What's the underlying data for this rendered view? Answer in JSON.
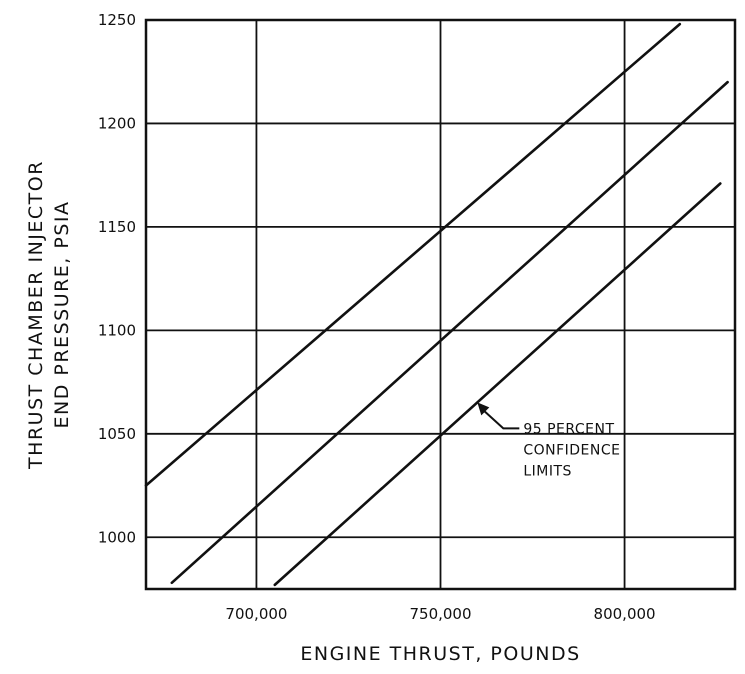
{
  "chart_data": {
    "type": "line",
    "title": "",
    "xlabel": "ENGINE THRUST, POUNDS",
    "ylabel_lines": [
      "THRUST CHAMBER INJECTOR",
      "END PRESSURE, PSIA"
    ],
    "xlim": [
      670000,
      830000
    ],
    "ylim": [
      975,
      1250
    ],
    "x_ticks": [
      700000,
      750000,
      800000
    ],
    "x_tick_labels": [
      "700,000",
      "750,000",
      "800,000"
    ],
    "y_ticks": [
      1000,
      1050,
      1100,
      1150,
      1200,
      1250
    ],
    "y_tick_labels": [
      "1000",
      "1050",
      "1100",
      "1150",
      "1200",
      "1250"
    ],
    "grid": true,
    "series": [
      {
        "x": [
          670000,
          815000
        ],
        "y": [
          1025,
          1248
        ]
      },
      {
        "x": [
          677000,
          828000
        ],
        "y": [
          978,
          1220
        ]
      },
      {
        "x": [
          705000,
          826000
        ],
        "y": [
          977,
          1171
        ]
      }
    ],
    "annotation_lines": [
      "95 PERCENT",
      "CONFIDENCE",
      "LIMITS"
    ],
    "colors": {
      "line": "#111111",
      "grid": "#111111",
      "background": "#ffffff"
    }
  }
}
